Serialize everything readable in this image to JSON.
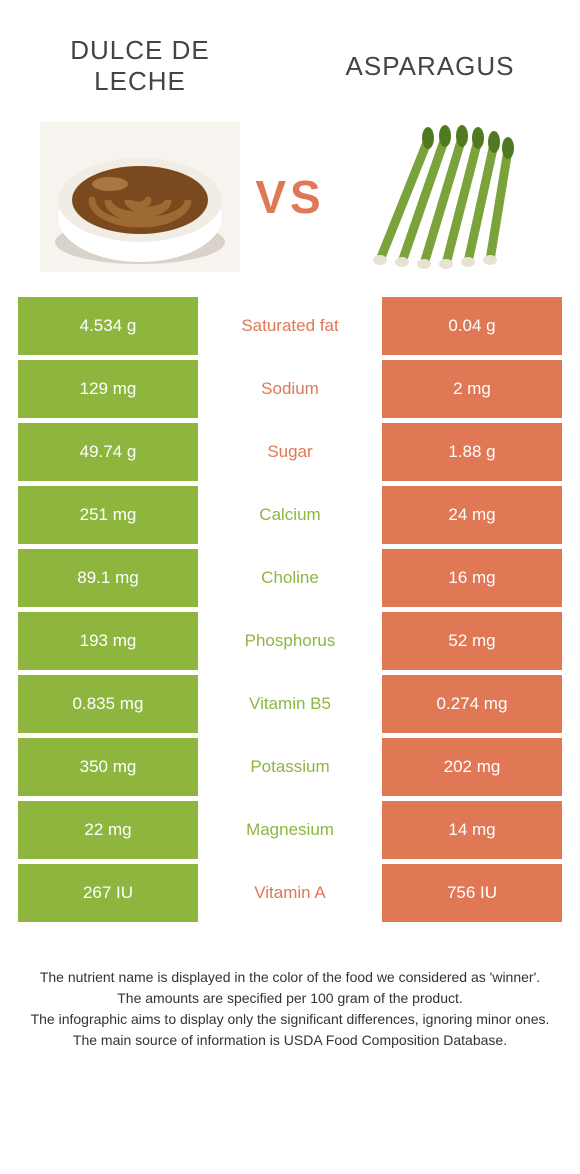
{
  "header": {
    "left": "DULCE DE LECHE",
    "right": "ASPARAGUS",
    "vs": "VS"
  },
  "colors": {
    "left": "#8eb63f",
    "right": "#e07856"
  },
  "rows": [
    {
      "left": "4.534 g",
      "label": "Saturated fat",
      "right": "0.04 g",
      "winner": "right"
    },
    {
      "left": "129 mg",
      "label": "Sodium",
      "right": "2 mg",
      "winner": "right"
    },
    {
      "left": "49.74 g",
      "label": "Sugar",
      "right": "1.88 g",
      "winner": "right"
    },
    {
      "left": "251 mg",
      "label": "Calcium",
      "right": "24 mg",
      "winner": "left"
    },
    {
      "left": "89.1 mg",
      "label": "Choline",
      "right": "16 mg",
      "winner": "left"
    },
    {
      "left": "193 mg",
      "label": "Phosphorus",
      "right": "52 mg",
      "winner": "left"
    },
    {
      "left": "0.835 mg",
      "label": "Vitamin B5",
      "right": "0.274 mg",
      "winner": "left"
    },
    {
      "left": "350 mg",
      "label": "Potassium",
      "right": "202 mg",
      "winner": "left"
    },
    {
      "left": "22 mg",
      "label": "Magnesium",
      "right": "14 mg",
      "winner": "left"
    },
    {
      "left": "267 IU",
      "label": "Vitamin A",
      "right": "756 IU",
      "winner": "right"
    }
  ],
  "footer": [
    "The nutrient name is displayed in the color of the food we considered as 'winner'.",
    "The amounts are specified per 100 gram of the product.",
    "The infographic aims to display only the significant differences, ignoring minor ones.",
    "The main source of information is USDA Food Composition Database."
  ]
}
